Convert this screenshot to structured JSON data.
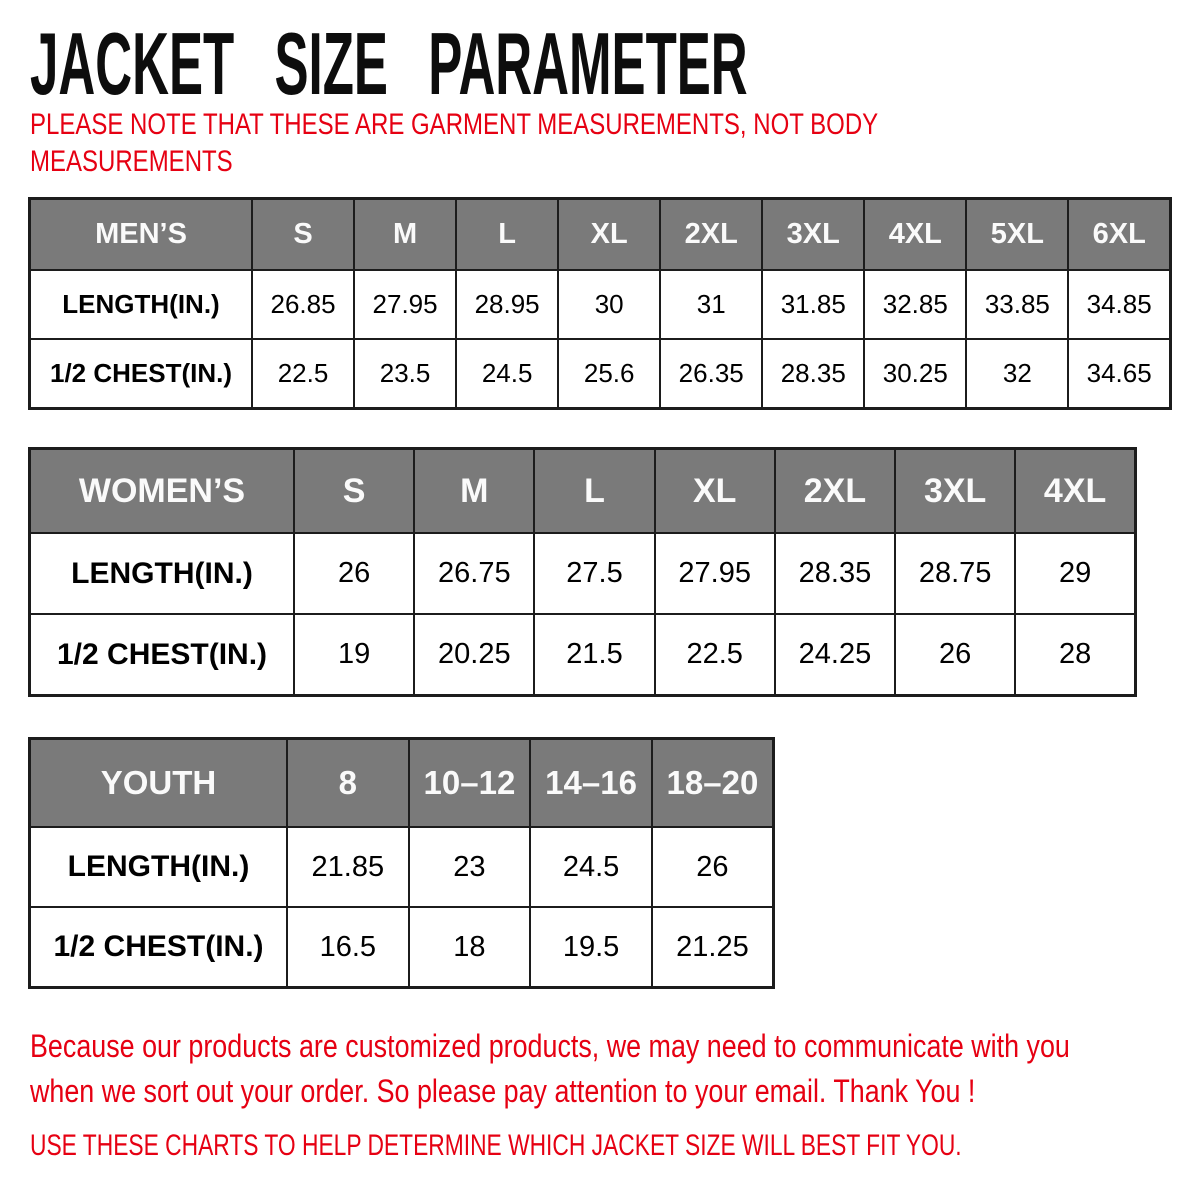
{
  "page": {
    "title": "JACKET SIZE PARAMETER",
    "note_lines": [
      "PLEASE NOTE THAT THESE ARE GARMENT MEASUREMENTS, NOT BODY",
      "MEASUREMENTS"
    ],
    "footer_lines": [
      "Because our products are customized products, we may need to communicate with you",
      "when we sort out your order. So please pay attention to your email. Thank You !"
    ],
    "footer_note": "USE THESE CHARTS TO HELP DETERMINE WHICH JACKET SIZE WILL BEST FIT YOU.",
    "colors": {
      "accent_red": "#e60012",
      "header_bg": "#7a7a7a",
      "header_text": "#fafafa",
      "border": "#1c1c1c",
      "title_text": "#0d0d0d",
      "body_text": "#000000"
    }
  },
  "tables": [
    {
      "name": "mens",
      "header": [
        "MEN’S",
        "S",
        "M",
        "L",
        "XL",
        "2XL",
        "3XL",
        "4XL",
        "5XL",
        "6XL"
      ],
      "rows": [
        {
          "label": "LENGTH(IN.)",
          "values": [
            "26.85",
            "27.95",
            "28.95",
            "30",
            "31",
            "31.85",
            "32.85",
            "33.85",
            "34.85"
          ]
        },
        {
          "label": "1/2 CHEST(IN.)",
          "values": [
            "22.5",
            "23.5",
            "24.5",
            "25.6",
            "26.35",
            "28.35",
            "30.25",
            "32",
            "34.65"
          ]
        }
      ]
    },
    {
      "name": "womens",
      "header": [
        "WOMEN’S",
        "S",
        "M",
        "L",
        "XL",
        "2XL",
        "3XL",
        "4XL"
      ],
      "rows": [
        {
          "label": "LENGTH(IN.)",
          "values": [
            "26",
            "26.75",
            "27.5",
            "27.95",
            "28.35",
            "28.75",
            "29"
          ]
        },
        {
          "label": "1/2 CHEST(IN.)",
          "values": [
            "19",
            "20.25",
            "21.5",
            "22.5",
            "24.25",
            "26",
            "28"
          ]
        }
      ]
    },
    {
      "name": "youth",
      "header": [
        "YOUTH",
        "8",
        "10–12",
        "14–16",
        "18–20"
      ],
      "rows": [
        {
          "label": "LENGTH(IN.)",
          "values": [
            "21.85",
            "23",
            "24.5",
            "26"
          ]
        },
        {
          "label": "1/2 CHEST(IN.)",
          "values": [
            "16.5",
            "18",
            "19.5",
            "21.25"
          ]
        }
      ]
    }
  ]
}
